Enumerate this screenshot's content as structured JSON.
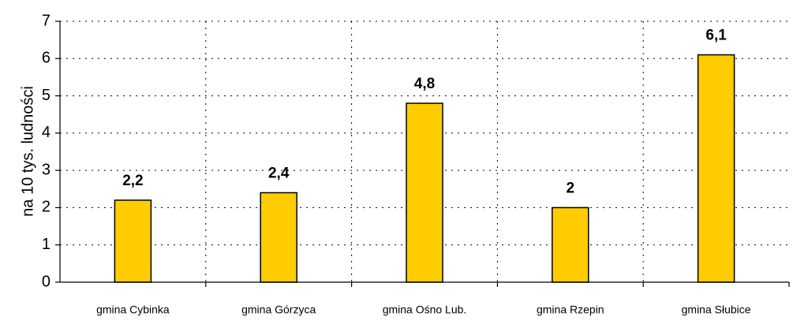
{
  "chart_data": {
    "type": "bar",
    "y_axis_label": "na 10 tys. ludności",
    "categories": [
      "gmina Cybinka",
      "gmina Górzyca",
      "gmina Ośno Lub.",
      "gmina Rzepin",
      "gmina Słubice"
    ],
    "values": [
      2.2,
      2.4,
      4.8,
      2,
      6.1
    ],
    "value_labels": [
      "2,2",
      "2,4",
      "4,8",
      "2",
      "6,1"
    ],
    "color": "#ffcc00",
    "ylim": [
      0,
      7
    ],
    "yticks": [
      0,
      1,
      2,
      3,
      4,
      5,
      6,
      7
    ],
    "grid": true
  }
}
